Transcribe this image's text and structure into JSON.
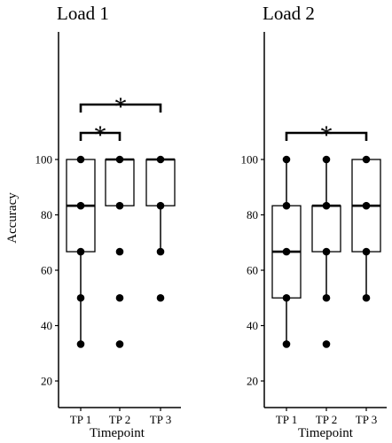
{
  "chart_data": [
    {
      "type": "boxplot",
      "title": "Load 1",
      "xlabel": "Timepoint",
      "ylabel": "Accuracy",
      "ylim": [
        20,
        120
      ],
      "yticks": [
        "20",
        "40",
        "60",
        "80",
        "100"
      ],
      "categories": [
        "TP 1",
        "TP 2",
        "TP 3"
      ],
      "boxes": [
        {
          "q1": 66.7,
          "median": 83.3,
          "q3": 100,
          "whisker_low": 33.3,
          "whisker_high": 100
        },
        {
          "q1": 83.3,
          "median": 100,
          "q3": 100,
          "whisker_low": 83.3,
          "whisker_high": 100
        },
        {
          "q1": 83.3,
          "median": 100,
          "q3": 100,
          "whisker_low": 66.7,
          "whisker_high": 100
        }
      ],
      "points": [
        [
          100,
          83.3,
          66.7,
          50,
          33.3
        ],
        [
          100,
          83.3,
          66.7,
          50,
          33.3
        ],
        [
          100,
          83.3,
          66.7,
          50
        ]
      ],
      "significance": [
        {
          "from": 0,
          "to": 1,
          "label": "*"
        },
        {
          "from": 0,
          "to": 2,
          "label": "*"
        }
      ],
      "grid": false
    },
    {
      "type": "boxplot",
      "title": "Load 2",
      "xlabel": "Timepoint",
      "ylabel": "",
      "ylim": [
        20,
        120
      ],
      "yticks": [
        "20",
        "40",
        "60",
        "80",
        "100"
      ],
      "categories": [
        "TP 1",
        "TP 2",
        "TP 3"
      ],
      "boxes": [
        {
          "q1": 50,
          "median": 66.7,
          "q3": 83.3,
          "whisker_low": 33.3,
          "whisker_high": 100
        },
        {
          "q1": 66.7,
          "median": 83.3,
          "q3": 83.3,
          "whisker_low": 50,
          "whisker_high": 100
        },
        {
          "q1": 66.7,
          "median": 83.3,
          "q3": 100,
          "whisker_low": 50,
          "whisker_high": 100
        }
      ],
      "points": [
        [
          100,
          83.3,
          66.7,
          50,
          33.3
        ],
        [
          100,
          83.3,
          66.7,
          50,
          33.3
        ],
        [
          100,
          83.3,
          66.7,
          50
        ]
      ],
      "significance": [
        {
          "from": 0,
          "to": 2,
          "label": "*"
        }
      ],
      "grid": false
    }
  ]
}
